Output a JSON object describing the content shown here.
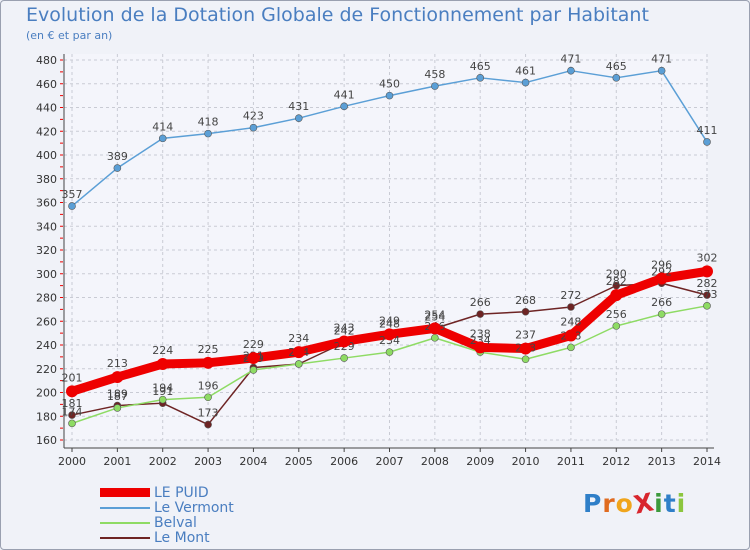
{
  "header": {
    "title": "Evolution de la Dotation Globale de Fonctionnement par Habitant",
    "subtitle": "(en € et par an)"
  },
  "logo": {
    "text": "ProXiti",
    "letters": [
      {
        "ch": "P",
        "color": "#2f7fc8"
      },
      {
        "ch": "r",
        "color": "#e06b1f"
      },
      {
        "ch": "o",
        "color": "#f0a51c"
      },
      {
        "ch": "X",
        "color": "#d8262e"
      },
      {
        "ch": "i",
        "color": "#3c9a3c"
      },
      {
        "ch": "t",
        "color": "#2f7fc8"
      },
      {
        "ch": "i",
        "color": "#8cc63e"
      }
    ]
  },
  "chart_data": {
    "type": "line",
    "title": "Evolution de la Dotation Globale de Fonctionnement par Habitant",
    "subtitle": "(en € et par an)",
    "xlabel": "",
    "ylabel": "",
    "x": [
      2000,
      2001,
      2002,
      2003,
      2004,
      2005,
      2006,
      2007,
      2008,
      2009,
      2010,
      2011,
      2012,
      2013,
      2014
    ],
    "ylim": [
      160,
      480
    ],
    "yticks": [
      160,
      180,
      200,
      220,
      240,
      260,
      280,
      300,
      320,
      340,
      360,
      380,
      400,
      420,
      440,
      460,
      480
    ],
    "grid": true,
    "legend_position": "bottom-left",
    "series": [
      {
        "name": "Le Mont",
        "color": "#6e2424",
        "values": [
          181,
          189,
          191,
          173,
          221,
          224,
          242,
          248,
          254,
          266,
          268,
          272,
          290,
          292,
          282
        ],
        "labels": [
          "181",
          "189",
          "191",
          "173",
          "221",
          "224",
          "242",
          "248",
          "254",
          "266",
          "268",
          "272",
          "290",
          "292",
          "282"
        ]
      },
      {
        "name": "Belval",
        "color": "#8edb64",
        "values": [
          174,
          187,
          194,
          196,
          219,
          224,
          229,
          234,
          246,
          234,
          228,
          238,
          256,
          266,
          273
        ],
        "labels": [
          "174",
          "187",
          "194",
          "196",
          "219",
          "224",
          "229",
          "234",
          "246",
          "234",
          "228",
          "238",
          "256",
          "266",
          "273"
        ]
      },
      {
        "name": "Le Vermont",
        "color": "#5b9fd6",
        "values": [
          357,
          389,
          414,
          418,
          423,
          431,
          441,
          450,
          458,
          465,
          461,
          471,
          465,
          471,
          411
        ],
        "labels": [
          "357",
          "389",
          "414",
          "418",
          "423",
          "431",
          "441",
          "450",
          "458",
          "465",
          "461",
          "471",
          "465",
          "471",
          "411"
        ]
      },
      {
        "name": "LE PUID",
        "color": "#ee0000",
        "values": [
          201,
          213,
          224,
          225,
          229,
          234,
          243,
          249,
          254,
          238,
          237,
          248,
          282,
          296,
          302
        ],
        "labels": [
          "201",
          "213",
          "224",
          "225",
          "229",
          "234",
          "243",
          "249",
          "254",
          "238",
          "237",
          "248",
          "282",
          "296",
          "302"
        ]
      }
    ]
  },
  "legend": [
    {
      "label": "LE PUID",
      "color": "#ee0000",
      "width": 9
    },
    {
      "label": "Le Vermont",
      "color": "#5b9fd6",
      "width": 1.5
    },
    {
      "label": "Belval",
      "color": "#8edb64",
      "width": 1.5
    },
    {
      "label": "Le Mont",
      "color": "#6e2424",
      "width": 1.5
    }
  ]
}
